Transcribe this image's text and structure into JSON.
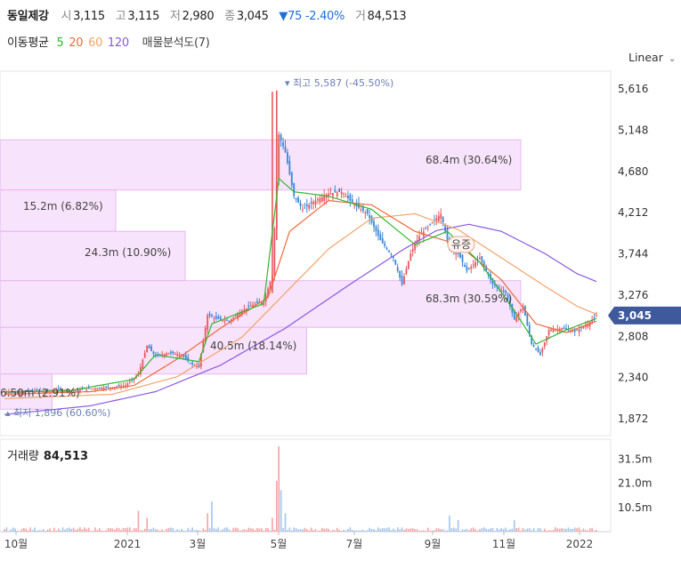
{
  "header": {
    "stock_name": "동일제강",
    "open_label": "시",
    "open": "3,115",
    "high_label": "고",
    "high": "3,115",
    "low_label": "저",
    "low": "2,980",
    "close_label": "종",
    "close": "3,045",
    "change": "▼75 -2.40%",
    "vol_label": "거",
    "volume": "84,513"
  },
  "ma_legend": {
    "label": "이동평균",
    "p5": "5",
    "p20": "20",
    "p60": "60",
    "p120": "120",
    "volume_profile": "매물분석도(7)"
  },
  "scale_label": "Linear",
  "volume_title": {
    "label": "거래량",
    "value": "84,513"
  },
  "colors": {
    "up": "#e8585e",
    "down": "#3b87d8",
    "ma5": "#2eb82e",
    "ma20": "#ee6a3a",
    "ma60": "#f3a36b",
    "ma120": "#8a58e0",
    "profile_fill": "#f7e3fb",
    "profile_stroke": "#e6b8ee",
    "current_tag": "#3e5a9c"
  },
  "chart_data": {
    "type": "candlestick",
    "y_scale": "linear",
    "ylim": [
      1680,
      5820
    ],
    "yticks": [
      "5,616",
      "5,148",
      "4,680",
      "4,212",
      "3,744",
      "3,276",
      "2,808",
      "2,340",
      "1,872"
    ],
    "current_price": "3,045",
    "x_labels": [
      "10월",
      "2021",
      "3월",
      "5월",
      "7월",
      "9월",
      "11월",
      "2022"
    ],
    "high_marker": "최고 5,587 (-45.50%)",
    "low_marker": "최저 1,896 (60.60%)",
    "event_marker": "유증",
    "volume_profile": [
      {
        "label": "68.4m (30.64%)",
        "price_from": 4470,
        "price_to": 5040,
        "share": 0.9
      },
      {
        "label": "15.2m (6.82%)",
        "price_from": 4000,
        "price_to": 4470,
        "share": 0.2
      },
      {
        "label": "24.3m (10.90%)",
        "price_from": 3440,
        "price_to": 4000,
        "share": 0.32
      },
      {
        "label": "68.3m (30.59%)",
        "price_from": 2910,
        "price_to": 3440,
        "share": 0.9
      },
      {
        "label": "40.5m (18.14%)",
        "price_from": 2380,
        "price_to": 2910,
        "share": 0.53
      },
      {
        "label": "6.50m (2.91%)",
        "price_from": 1980,
        "price_to": 2380,
        "share": 0.09
      }
    ],
    "volume_axis": {
      "ticks": [
        "31.5m",
        "21.0m",
        "10.5m"
      ],
      "max": 37
    },
    "series_anchor_close": [
      [
        0,
        2180
      ],
      [
        6,
        2170
      ],
      [
        12,
        2190
      ],
      [
        18,
        2180
      ],
      [
        25,
        2200
      ],
      [
        31,
        2190
      ],
      [
        37,
        2210
      ],
      [
        43,
        2220
      ],
      [
        50,
        2230
      ],
      [
        56,
        2250
      ],
      [
        62,
        2380
      ],
      [
        66,
        2700
      ],
      [
        70,
        2580
      ],
      [
        76,
        2620
      ],
      [
        82,
        2600
      ],
      [
        86,
        2500
      ],
      [
        90,
        2460
      ],
      [
        94,
        3050
      ],
      [
        98,
        3010
      ],
      [
        104,
        2980
      ],
      [
        110,
        3100
      ],
      [
        116,
        3180
      ],
      [
        120,
        3200
      ],
      [
        124,
        3500
      ],
      [
        127,
        5100
      ],
      [
        130,
        4900
      ],
      [
        134,
        4400
      ],
      [
        138,
        4250
      ],
      [
        144,
        4350
      ],
      [
        150,
        4430
      ],
      [
        156,
        4450
      ],
      [
        162,
        4300
      ],
      [
        168,
        4200
      ],
      [
        174,
        3900
      ],
      [
        180,
        3700
      ],
      [
        184,
        3400
      ],
      [
        188,
        3750
      ],
      [
        192,
        3950
      ],
      [
        198,
        4100
      ],
      [
        202,
        4200
      ],
      [
        206,
        3800
      ],
      [
        210,
        3750
      ],
      [
        214,
        3550
      ],
      [
        220,
        3700
      ],
      [
        226,
        3400
      ],
      [
        232,
        3300
      ],
      [
        236,
        3000
      ],
      [
        240,
        3150
      ],
      [
        244,
        2720
      ],
      [
        248,
        2600
      ],
      [
        252,
        2880
      ],
      [
        258,
        2900
      ],
      [
        264,
        2860
      ],
      [
        270,
        2950
      ],
      [
        274,
        3045
      ]
    ],
    "ma5": [
      [
        0,
        2175
      ],
      [
        30,
        2190
      ],
      [
        60,
        2320
      ],
      [
        70,
        2600
      ],
      [
        90,
        2520
      ],
      [
        96,
        2950
      ],
      [
        120,
        3180
      ],
      [
        127,
        4600
      ],
      [
        134,
        4450
      ],
      [
        150,
        4400
      ],
      [
        170,
        4250
      ],
      [
        190,
        3850
      ],
      [
        205,
        4000
      ],
      [
        220,
        3650
      ],
      [
        236,
        3100
      ],
      [
        246,
        2720
      ],
      [
        260,
        2880
      ],
      [
        274,
        3010
      ]
    ],
    "ma20": [
      [
        0,
        2150
      ],
      [
        40,
        2180
      ],
      [
        60,
        2250
      ],
      [
        80,
        2550
      ],
      [
        100,
        2900
      ],
      [
        122,
        3250
      ],
      [
        132,
        4000
      ],
      [
        150,
        4350
      ],
      [
        170,
        4300
      ],
      [
        190,
        4000
      ],
      [
        210,
        3850
      ],
      [
        230,
        3450
      ],
      [
        246,
        2950
      ],
      [
        260,
        2850
      ],
      [
        274,
        2980
      ]
    ],
    "ma60": [
      [
        0,
        2100
      ],
      [
        50,
        2150
      ],
      [
        80,
        2350
      ],
      [
        110,
        2800
      ],
      [
        130,
        3300
      ],
      [
        150,
        3800
      ],
      [
        170,
        4150
      ],
      [
        190,
        4200
      ],
      [
        210,
        4020
      ],
      [
        230,
        3700
      ],
      [
        250,
        3380
      ],
      [
        265,
        3150
      ],
      [
        274,
        3060
      ]
    ],
    "ma120": [
      [
        0,
        1920
      ],
      [
        40,
        2020
      ],
      [
        70,
        2180
      ],
      [
        100,
        2480
      ],
      [
        130,
        2900
      ],
      [
        160,
        3400
      ],
      [
        185,
        3800
      ],
      [
        200,
        4010
      ],
      [
        215,
        4080
      ],
      [
        230,
        4000
      ],
      [
        250,
        3750
      ],
      [
        265,
        3520
      ],
      [
        274,
        3430
      ]
    ],
    "volume_spikes": [
      [
        62,
        9
      ],
      [
        66,
        6
      ],
      [
        94,
        8
      ],
      [
        96,
        13
      ],
      [
        124,
        6
      ],
      [
        126,
        22
      ],
      [
        127,
        37
      ],
      [
        128,
        18
      ],
      [
        130,
        8
      ],
      [
        206,
        7
      ],
      [
        210,
        5
      ],
      [
        236,
        5
      ]
    ]
  }
}
